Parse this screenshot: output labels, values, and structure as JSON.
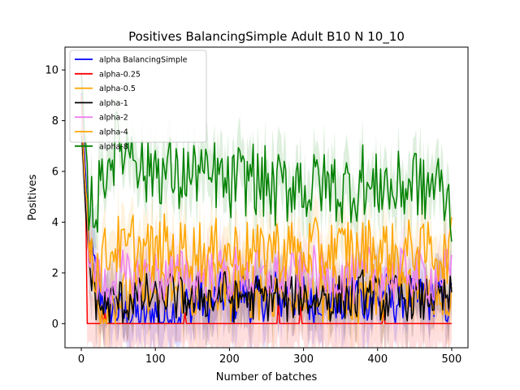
{
  "chart_data": {
    "type": "line",
    "title": "Positives BalancingSimple Adult B10 N 10_10",
    "xlabel": "Number of batches",
    "ylabel": "Positives",
    "xlim": [
      -22,
      522
    ],
    "ylim": [
      -0.95,
      10.9
    ],
    "xticks": [
      0,
      100,
      200,
      300,
      400,
      500
    ],
    "yticks": [
      0,
      2,
      4,
      6,
      8,
      10
    ],
    "grid": false,
    "legend_position": "top-left",
    "series": [
      {
        "name": "alpha BalancingSimple",
        "color": "#0000ff",
        "values": [
          9.0,
          3.2,
          1.8,
          0.9,
          0.6,
          0.5,
          0.3,
          0.4,
          0.2,
          0.3,
          0.5,
          0.2,
          0.6,
          0.3,
          0.8,
          0.4,
          1.1,
          0.5,
          0.9,
          1.2,
          0.7,
          1.0,
          1.3,
          0.6,
          1.1,
          0.9,
          1.4,
          0.8,
          1.2,
          1.0,
          1.3,
          0.7,
          1.1,
          0.9,
          1.2,
          0.6,
          1.0,
          1.4,
          0.8,
          1.1,
          0.9,
          1.3,
          0.7,
          1.0,
          1.2,
          0.8,
          1.1,
          0.9,
          1.3,
          0.6,
          1.0
        ]
      },
      {
        "name": "alpha-0.25",
        "color": "#ff0000",
        "values": [
          9.0,
          2.0,
          0.2,
          0.0,
          0.1,
          0.0,
          0.0,
          0.0,
          0.0,
          0.0,
          0.0,
          0.0,
          0.0,
          0.0,
          0.0,
          0.0,
          0.0,
          0.0,
          0.0,
          0.0,
          0.3,
          0.0,
          0.0,
          0.0,
          0.0,
          0.0,
          0.0,
          0.0,
          0.0,
          0.0,
          0.2,
          0.0,
          0.0,
          0.0,
          0.0,
          0.0,
          0.0,
          0.0,
          0.0,
          0.0,
          0.0,
          0.0,
          0.0,
          0.0,
          0.0,
          0.0,
          0.0,
          0.0,
          0.0,
          0.0,
          0.0
        ]
      },
      {
        "name": "alpha-0.5",
        "color": "#ffa500",
        "values": [
          8.0,
          3.0,
          1.5,
          0.5,
          0.8,
          1.2,
          0.9,
          1.4,
          1.1,
          1.6,
          1.3,
          1.0,
          1.5,
          1.2,
          1.7,
          1.1,
          1.4,
          1.0,
          1.6,
          1.3,
          1.2,
          1.5,
          1.1,
          1.4,
          1.3,
          1.6,
          1.2,
          1.5,
          1.0,
          1.4,
          1.2,
          1.6,
          1.3,
          1.1,
          1.5,
          1.2,
          1.4,
          1.0,
          1.3,
          1.5,
          1.2,
          1.4,
          1.1,
          1.6,
          1.3,
          1.2,
          1.4,
          1.1,
          1.5,
          1.3,
          1.2
        ]
      },
      {
        "name": "alpha-1",
        "color": "#000000",
        "values": [
          7.5,
          2.5,
          1.0,
          0.6,
          0.8,
          1.0,
          0.7,
          1.1,
          0.9,
          1.2,
          0.8,
          1.0,
          1.3,
          0.9,
          1.1,
          0.8,
          1.2,
          1.0,
          0.9,
          1.3,
          1.1,
          0.8,
          1.2,
          1.0,
          1.1,
          0.9,
          1.3,
          1.0,
          0.8,
          1.2,
          1.1,
          0.9,
          1.0,
          1.2,
          0.8,
          1.1,
          1.0,
          0.9,
          1.3,
          1.0,
          1.1,
          0.8,
          1.2,
          0.9,
          1.0,
          1.1,
          0.8,
          1.2,
          1.0,
          0.9,
          1.1
        ]
      },
      {
        "name": "alpha-2",
        "color": "#ee82ee",
        "values": [
          8.5,
          3.0,
          1.8,
          1.4,
          1.7,
          2.1,
          1.8,
          2.0,
          1.6,
          2.2,
          1.9,
          1.7,
          2.0,
          1.8,
          2.3,
          1.7,
          1.9,
          2.1,
          1.8,
          2.0,
          1.7,
          2.2,
          1.9,
          1.8,
          2.0,
          1.6,
          2.1,
          1.9,
          1.7,
          2.0,
          1.8,
          2.2,
          1.9,
          1.7,
          2.1,
          1.8,
          2.0,
          1.6,
          1.9,
          2.1,
          1.8,
          2.0,
          1.7,
          1.9,
          2.2,
          1.8,
          2.0,
          1.7,
          1.9,
          2.1,
          1.8
        ]
      },
      {
        "name": "alpha-4",
        "color": "#ffa500",
        "values": [
          8.0,
          3.5,
          2.0,
          2.6,
          2.9,
          3.1,
          2.7,
          3.3,
          2.8,
          3.0,
          2.6,
          3.2,
          2.9,
          2.7,
          3.1,
          2.8,
          3.0,
          2.5,
          2.9,
          3.2,
          2.7,
          3.0,
          2.8,
          3.1,
          2.6,
          2.9,
          3.2,
          2.7,
          3.0,
          2.8,
          2.6,
          3.1,
          2.9,
          2.7,
          3.0,
          2.8,
          3.2,
          2.6,
          2.9,
          3.1,
          2.7,
          3.0,
          2.8,
          2.5,
          2.9,
          3.1,
          2.7,
          3.0,
          2.8,
          2.6,
          3.0
        ]
      },
      {
        "name": "alpha-8",
        "color": "#008000",
        "values": [
          9.5,
          5.0,
          4.5,
          6.0,
          6.6,
          7.2,
          6.8,
          7.3,
          6.2,
          5.8,
          6.4,
          5.9,
          6.1,
          5.5,
          6.0,
          5.7,
          6.3,
          5.4,
          5.9,
          5.6,
          5.2,
          5.8,
          5.5,
          6.1,
          5.3,
          5.7,
          5.0,
          5.6,
          5.2,
          5.9,
          5.4,
          5.1,
          5.8,
          5.3,
          5.6,
          5.0,
          5.5,
          5.2,
          5.8,
          5.1,
          5.4,
          5.7,
          5.0,
          5.5,
          5.3,
          5.9,
          5.1,
          5.4,
          5.6,
          5.0,
          4.5
        ]
      }
    ]
  }
}
